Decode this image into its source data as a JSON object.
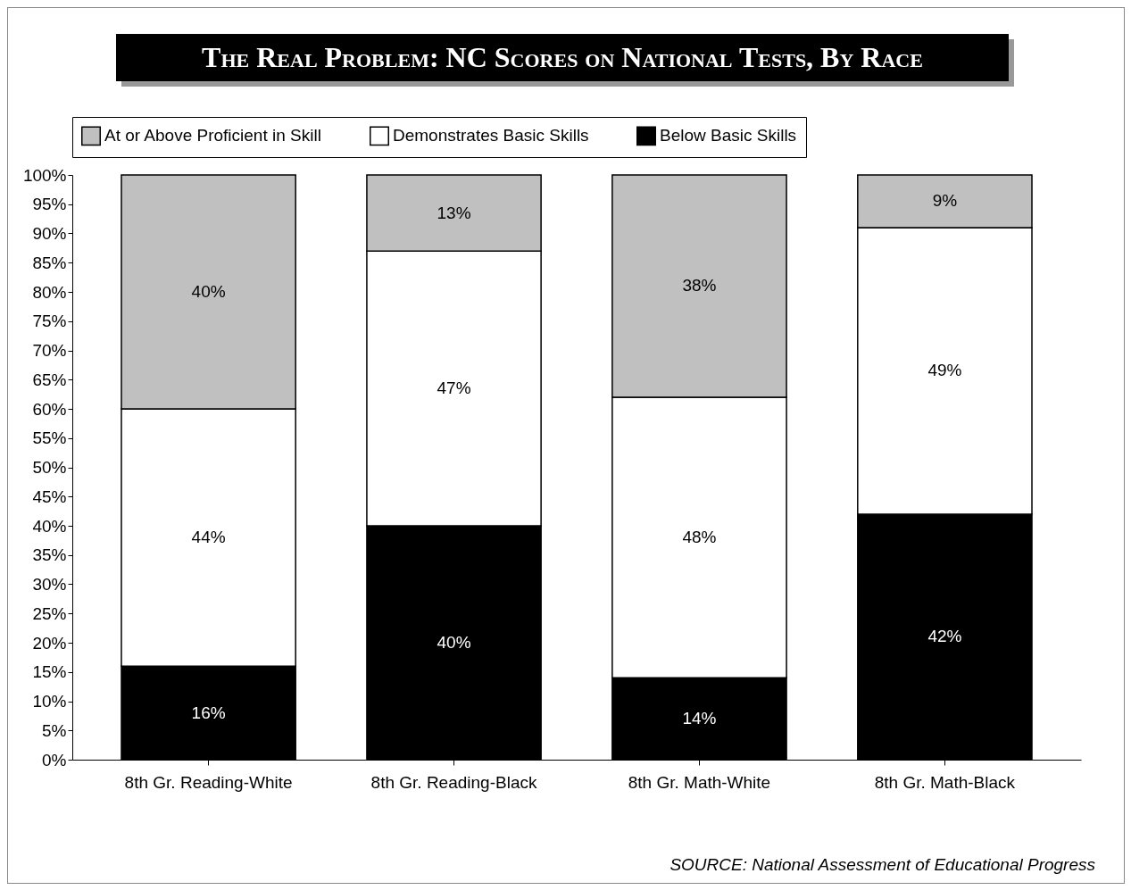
{
  "chart_data": {
    "type": "bar",
    "title": "The Real Problem: NC Scores on National Tests, By Race",
    "categories": [
      "8th Gr. Reading-White",
      "8th Gr. Reading-Black",
      "8th Gr. Math-White",
      "8th Gr. Math-Black"
    ],
    "stacked": true,
    "series": [
      {
        "name": "Below Basic Skills",
        "color": "#000000",
        "values": [
          16,
          40,
          14,
          42
        ],
        "value_labels": [
          "16%",
          "40%",
          "14%",
          "42%"
        ]
      },
      {
        "name": "Demonstrates Basic Skills",
        "color": "#ffffff",
        "values": [
          44,
          47,
          48,
          49
        ],
        "value_labels": [
          "44%",
          "47%",
          "48%",
          "49%"
        ]
      },
      {
        "name": "At or Above Proficient in Skill",
        "color": "#c0c0c0",
        "values": [
          40,
          13,
          38,
          9
        ],
        "value_labels": [
          "40%",
          "13%",
          "38%",
          "9%"
        ]
      }
    ],
    "ylim": [
      0,
      100
    ],
    "yticks": [
      {
        "value": 0,
        "label": "0%"
      },
      {
        "value": 5,
        "label": "5%"
      },
      {
        "value": 10,
        "label": "10%"
      },
      {
        "value": 15,
        "label": "15%"
      },
      {
        "value": 20,
        "label": "20%"
      },
      {
        "value": 25,
        "label": "25%"
      },
      {
        "value": 30,
        "label": "30%"
      },
      {
        "value": 35,
        "label": "35%"
      },
      {
        "value": 40,
        "label": "40%"
      },
      {
        "value": 45,
        "label": "45%"
      },
      {
        "value": 50,
        "label": "50%"
      },
      {
        "value": 55,
        "label": "55%"
      },
      {
        "value": 60,
        "label": "60%"
      },
      {
        "value": 65,
        "label": "65%"
      },
      {
        "value": 70,
        "label": "70%"
      },
      {
        "value": 75,
        "label": "75%"
      },
      {
        "value": 80,
        "label": "80%"
      },
      {
        "value": 85,
        "label": "85%"
      },
      {
        "value": 90,
        "label": "90%"
      },
      {
        "value": 95,
        "label": "95%"
      },
      {
        "value": 100,
        "label": "100%"
      }
    ],
    "grid": false,
    "legend": "top",
    "annotations": [
      "SOURCE: National Assessment of Educational Progress"
    ]
  }
}
